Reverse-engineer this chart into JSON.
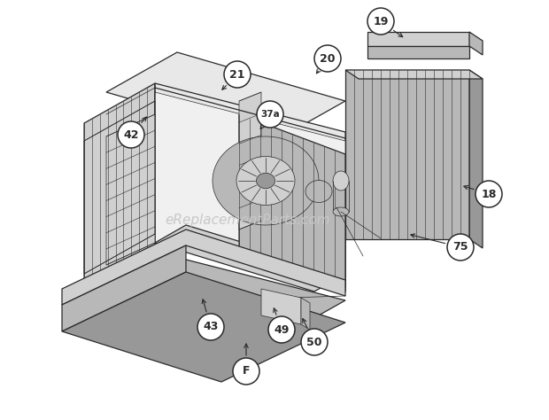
{
  "bg_color": "#ffffff",
  "line_color": "#2a2a2a",
  "gray1": "#e8e8e8",
  "gray2": "#d0d0d0",
  "gray3": "#b8b8b8",
  "gray4": "#989898",
  "gray5": "#787878",
  "watermark": "eReplacementParts.com",
  "watermark_color": "#c8c8c8",
  "watermark_fontsize": 11,
  "lw_main": 0.9,
  "lw_thin": 0.5,
  "lw_slat": 0.4
}
